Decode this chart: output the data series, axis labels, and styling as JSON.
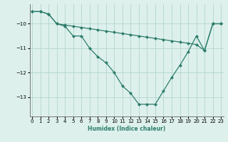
{
  "xlabel": "Humidex (Indice chaleur)",
  "line_color": "#2d7d6b",
  "bg_color": "#ddf0ec",
  "grid_color": "#b8d8d2",
  "line1_y": [
    -9.5,
    -9.5,
    -9.6,
    -10.0,
    -10.1,
    -10.5,
    -10.5,
    -11.0,
    -11.35,
    -11.6,
    -12.0,
    -12.55,
    -12.85,
    -13.3,
    -13.3,
    -13.3,
    -12.75,
    -12.2,
    -11.7,
    -11.15,
    -10.5,
    -11.1,
    -10.0,
    -10.0
  ],
  "line2_y": [
    -9.5,
    -9.5,
    -9.6,
    -10.0,
    -10.05,
    -10.1,
    -10.15,
    -10.2,
    -10.25,
    -10.3,
    -10.35,
    -10.4,
    -10.45,
    -10.5,
    -10.55,
    -10.6,
    -10.65,
    -10.7,
    -10.75,
    -10.8,
    -10.85,
    -11.1,
    -10.0,
    -10.0
  ],
  "ylim": [
    -13.8,
    -9.2
  ],
  "xlim": [
    -0.3,
    23.3
  ],
  "yticks": [
    -13,
    -12,
    -11,
    -10
  ],
  "xticks": [
    0,
    1,
    2,
    3,
    4,
    5,
    6,
    7,
    8,
    9,
    10,
    11,
    12,
    13,
    14,
    15,
    16,
    17,
    18,
    19,
    20,
    21,
    22,
    23
  ],
  "markersize": 2.5,
  "linewidth": 0.9,
  "tick_fontsize": 5,
  "xlabel_fontsize": 5.5
}
